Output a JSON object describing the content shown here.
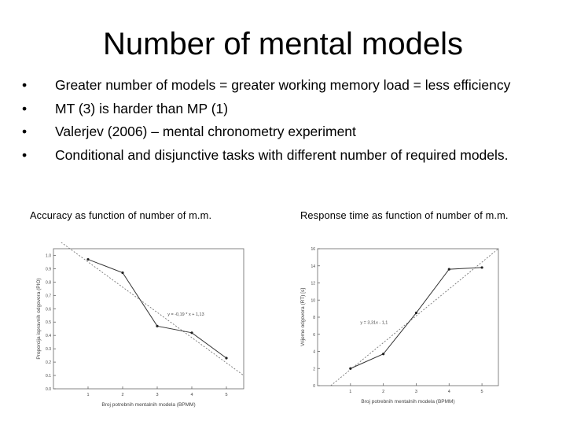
{
  "slide": {
    "title": "Number of mental models",
    "bullets": [
      "Greater number of models = greater working memory load = less efficiency",
      "MT (3) is harder than MP (1)",
      "Valerjev (2006) – mental chronometry experiment",
      "Conditional and disjunctive tasks with different number of required models."
    ]
  },
  "chart_data": [
    {
      "type": "line",
      "caption": "Accuracy as function of number of m.m.",
      "xlabel": "Broj potrebnih mentalnih modela (BPMM)",
      "ylabel": "Proporcija ispravnih odgovora (PIO)",
      "xlim": [
        0,
        5.5
      ],
      "ylim": [
        0,
        1.05
      ],
      "xticks": [
        1,
        2,
        3,
        4,
        5
      ],
      "yticks": [
        0.0,
        0.1,
        0.2,
        0.3,
        0.4,
        0.5,
        0.6,
        0.7,
        0.8,
        0.9,
        1.0
      ],
      "ytick_labels": [
        "0.0",
        "0.1",
        "0.2",
        "0.3",
        "0.4",
        "0.5",
        "0.6",
        "0.7",
        "0.8",
        "0.9",
        "1.0"
      ],
      "series": [
        {
          "x": [
            1,
            2,
            3,
            4,
            5
          ],
          "y": [
            0.97,
            0.87,
            0.47,
            0.42,
            0.23
          ]
        }
      ],
      "fit_line": {
        "x0": 0,
        "y0": 1.14,
        "x1": 5.5,
        "y1": 0.1
      },
      "annotation": "y = -0,19 * x + 1,13",
      "annotation_at": [
        3.3,
        0.55
      ],
      "grid": false,
      "line_color": "#333333",
      "fit_color": "#777777",
      "marker_color": "#222222"
    },
    {
      "type": "line",
      "caption": "Response time as function of number of m.m.",
      "xlabel": "Broj potrebnih mentalnih modela (BPMM)",
      "ylabel": "Vrijeme odgovora (RT) [s]",
      "xlim": [
        0,
        5.5
      ],
      "ylim": [
        0,
        16
      ],
      "xticks": [
        1,
        2,
        3,
        4,
        5
      ],
      "yticks": [
        0,
        2,
        4,
        6,
        8,
        10,
        12,
        14,
        16
      ],
      "ytick_labels": [
        "0",
        "2",
        "4",
        "6",
        "8",
        "10",
        "12",
        "14",
        "16"
      ],
      "series": [
        {
          "x": [
            1,
            2,
            3,
            4,
            5
          ],
          "y": [
            2.0,
            3.7,
            8.5,
            13.6,
            13.8
          ]
        }
      ],
      "fit_line": {
        "x0": 0.4,
        "y0": 0,
        "x1": 5.5,
        "y1": 16
      },
      "annotation": "y = 3,31x - 1,1",
      "annotation_at": [
        1.3,
        7.2
      ],
      "grid": false,
      "line_color": "#333333",
      "fit_color": "#777777",
      "marker_color": "#222222"
    }
  ]
}
